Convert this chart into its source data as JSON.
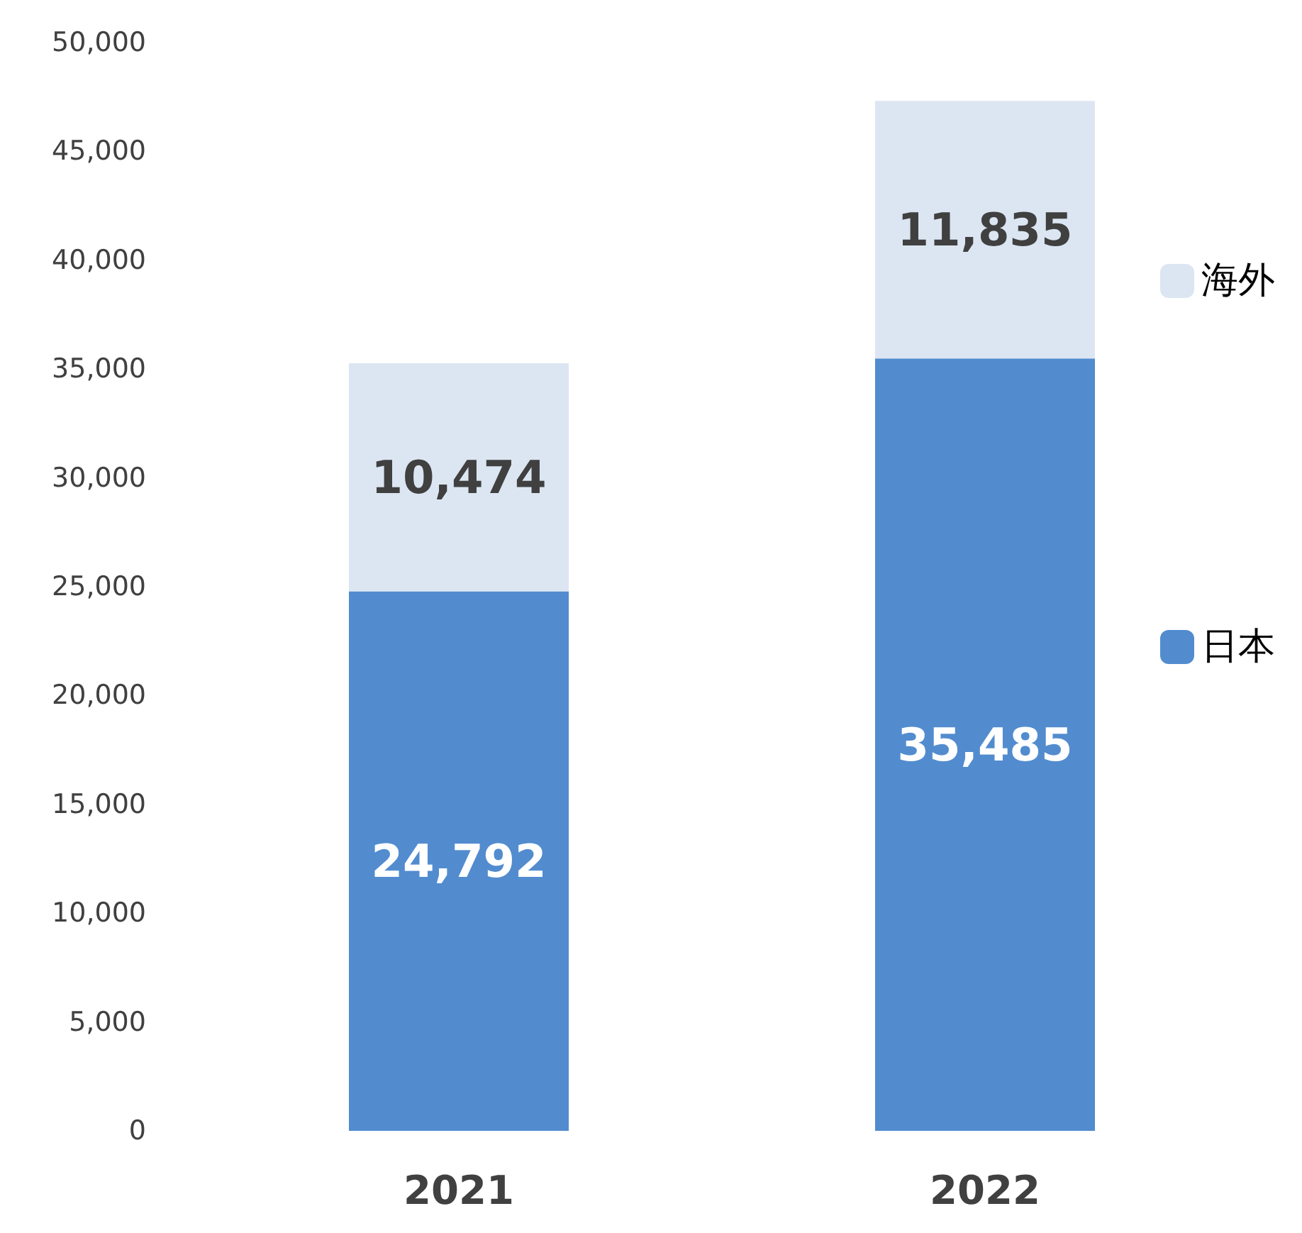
{
  "chart_data": {
    "type": "bar",
    "stacked": true,
    "categories": [
      "2021",
      "2022"
    ],
    "series": [
      {
        "name": "日本",
        "color": "#528ccf",
        "values": [
          24792,
          35485
        ],
        "value_labels": [
          "24,792",
          "35,485"
        ]
      },
      {
        "name": "海外",
        "color": "#dce6f2",
        "values": [
          10474,
          11835
        ],
        "value_labels": [
          "10,474",
          "11,835"
        ]
      }
    ],
    "ylim": [
      0,
      50000
    ],
    "yticks": [
      0,
      {
        "value": 5000,
        "label": "5,000"
      },
      {
        "value": 10000,
        "label": "10,000"
      },
      {
        "value": 15000,
        "label": "15,000"
      },
      {
        "value": 20000,
        "label": "20,000"
      },
      {
        "value": 25000,
        "label": "25,000"
      },
      {
        "value": 30000,
        "label": "30,000"
      },
      {
        "value": 35000,
        "label": "35,000"
      },
      {
        "value": 40000,
        "label": "40,000"
      },
      {
        "value": 45000,
        "label": "45,000"
      },
      {
        "value": 50000,
        "label": "50,000"
      }
    ],
    "grid": false,
    "legend": "right"
  }
}
